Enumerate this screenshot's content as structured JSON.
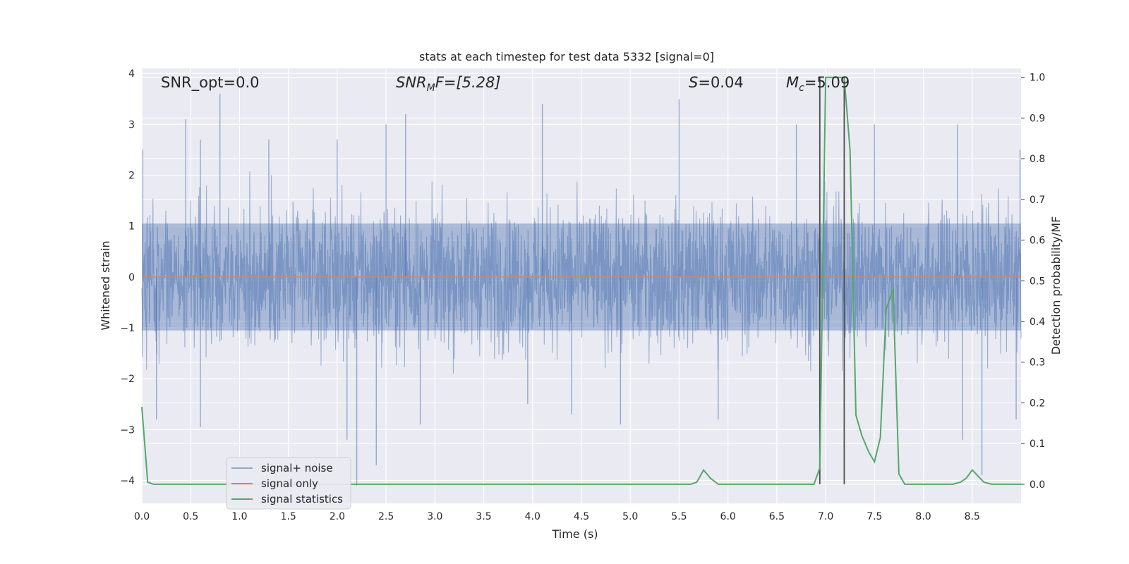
{
  "chart_data": {
    "type": "line",
    "title": "stats at each timestep for test data 5332 [signal=0]",
    "xlabel": "Time (s)",
    "ylabel": "Whitened strain",
    "y2label": "Detection probability/MF",
    "xlim": [
      0.0,
      9.0
    ],
    "ylim": [
      -4.45,
      4.1
    ],
    "y2lim": [
      -0.047,
      1.022
    ],
    "xticks": [
      "0.0",
      "0.5",
      "1.0",
      "1.5",
      "2.0",
      "2.5",
      "3.0",
      "3.5",
      "4.0",
      "4.5",
      "5.0",
      "5.5",
      "6.0",
      "6.5",
      "7.0",
      "7.5",
      "8.0",
      "8.5"
    ],
    "yticks": [
      "−4",
      "−3",
      "−2",
      "−1",
      "0",
      "1",
      "2",
      "3",
      "4"
    ],
    "y2ticks": [
      "0.0",
      "0.1",
      "0.2",
      "0.3",
      "0.4",
      "0.5",
      "0.6",
      "0.7",
      "0.8",
      "0.9",
      "1.0"
    ],
    "grid": true,
    "legend_position": "lower-left",
    "annotations": {
      "snr_opt": "SNR_opt=0.0",
      "snr_mf_main": "SNR",
      "snr_mf_sub": "M",
      "snr_mf_rest": "F=[5.28]",
      "s_main": "S",
      "s_rest": "=0.04",
      "mc_main": "M",
      "mc_sub": "c",
      "mc_rest": "=5.09"
    },
    "vlines_x": [
      6.94,
      7.19
    ],
    "series": [
      {
        "name": "signal+ noise",
        "color": "#4c72b0",
        "note_values": "noise band approx within [-2, 2] with spikes",
        "spikes": [
          [
            0.01,
            2.5
          ],
          [
            0.45,
            3.1
          ],
          [
            0.8,
            3.6
          ],
          [
            0.6,
            2.7
          ],
          [
            1.3,
            2.7
          ],
          [
            2.0,
            2.7
          ],
          [
            2.7,
            3.2
          ],
          [
            2.5,
            3.0
          ],
          [
            4.1,
            3.4
          ],
          [
            5.5,
            3.5
          ],
          [
            6.7,
            3.0
          ],
          [
            7.5,
            3.0
          ],
          [
            8.35,
            3.0
          ],
          [
            8.99,
            2.5
          ],
          [
            0.6,
            -2.95
          ],
          [
            0.15,
            -2.8
          ],
          [
            2.1,
            -3.2
          ],
          [
            2.2,
            -4.1
          ],
          [
            2.4,
            -3.7
          ],
          [
            2.85,
            -2.9
          ],
          [
            3.95,
            -2.5
          ],
          [
            4.4,
            -2.7
          ],
          [
            4.9,
            -2.9
          ],
          [
            5.9,
            -2.8
          ],
          [
            8.4,
            -3.2
          ],
          [
            8.6,
            -3.9
          ],
          [
            8.95,
            -2.8
          ]
        ]
      },
      {
        "name": "signal only",
        "color": "#dd8452",
        "x": [
          0.0,
          9.0
        ],
        "y": [
          0.0,
          0.0
        ]
      },
      {
        "name": "signal statistics",
        "color": "#55a868",
        "x": [
          0.0,
          0.06,
          0.12,
          0.2,
          0.5,
          1.0,
          1.5,
          2.0,
          2.5,
          3.0,
          3.5,
          4.0,
          4.5,
          5.0,
          5.5,
          5.62,
          5.68,
          5.75,
          5.82,
          5.9,
          6.0,
          6.5,
          6.88,
          6.94,
          7.0,
          7.06,
          7.12,
          7.19,
          7.25,
          7.31,
          7.37,
          7.44,
          7.5,
          7.56,
          7.62,
          7.69,
          7.75,
          7.81,
          7.9,
          8.0,
          8.3,
          8.38,
          8.44,
          8.5,
          8.56,
          8.62,
          8.7,
          9.0
        ],
        "y": [
          0.19,
          0.005,
          0.0,
          0.0,
          0.0,
          0.0,
          0.0,
          0.0,
          0.0,
          0.0,
          0.0,
          0.0,
          0.0,
          0.0,
          0.0,
          0.0,
          0.005,
          0.035,
          0.015,
          0.0,
          0.0,
          0.0,
          0.0,
          0.04,
          1.0,
          1.0,
          1.0,
          1.0,
          0.82,
          0.17,
          0.12,
          0.08,
          0.055,
          0.115,
          0.43,
          0.48,
          0.025,
          0.0,
          0.0,
          0.0,
          0.0,
          0.005,
          0.015,
          0.035,
          0.02,
          0.005,
          0.0,
          0.0
        ]
      }
    ]
  },
  "colors": {
    "axes_bg": "#eaeaf2",
    "grid": "#ffffff",
    "noise": "#4c72b0",
    "signal": "#dd8452",
    "stats": "#55a868",
    "vline": "#4d4d4d"
  }
}
